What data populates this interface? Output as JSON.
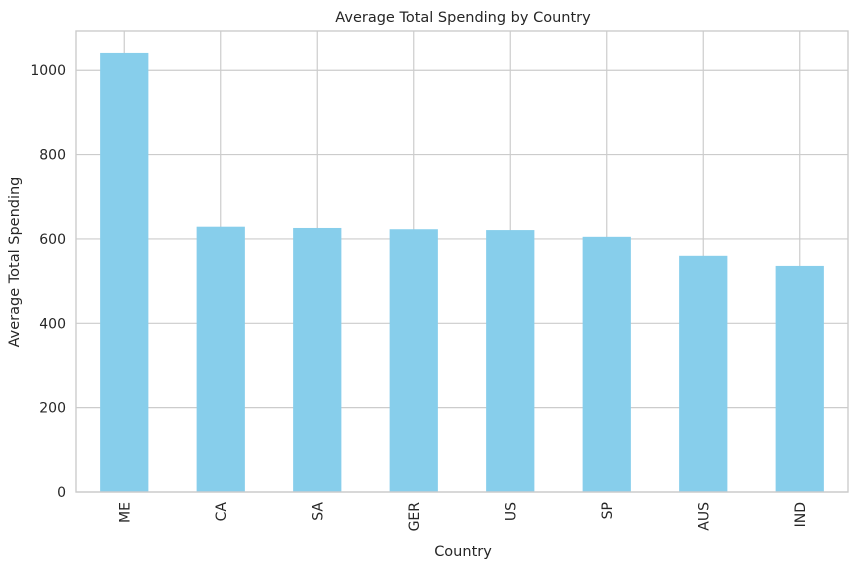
{
  "chart_data": {
    "type": "bar",
    "title": "Average Total Spending by Country",
    "xlabel": "Country",
    "ylabel": "Average Total Spending",
    "categories": [
      "ME",
      "CA",
      "SA",
      "GER",
      "US",
      "SP",
      "AUS",
      "IND"
    ],
    "values": [
      1041,
      629,
      626,
      623,
      621,
      605,
      560,
      536
    ],
    "ylim": [
      0,
      1093
    ],
    "yticks": [
      0,
      200,
      400,
      600,
      800,
      1000
    ],
    "grid": true,
    "legend": "none",
    "colors": {
      "bar": "#87ceeb",
      "grid": "#cccccc",
      "spine": "#cccccc",
      "text": "#262626",
      "background": "#ffffff"
    }
  }
}
